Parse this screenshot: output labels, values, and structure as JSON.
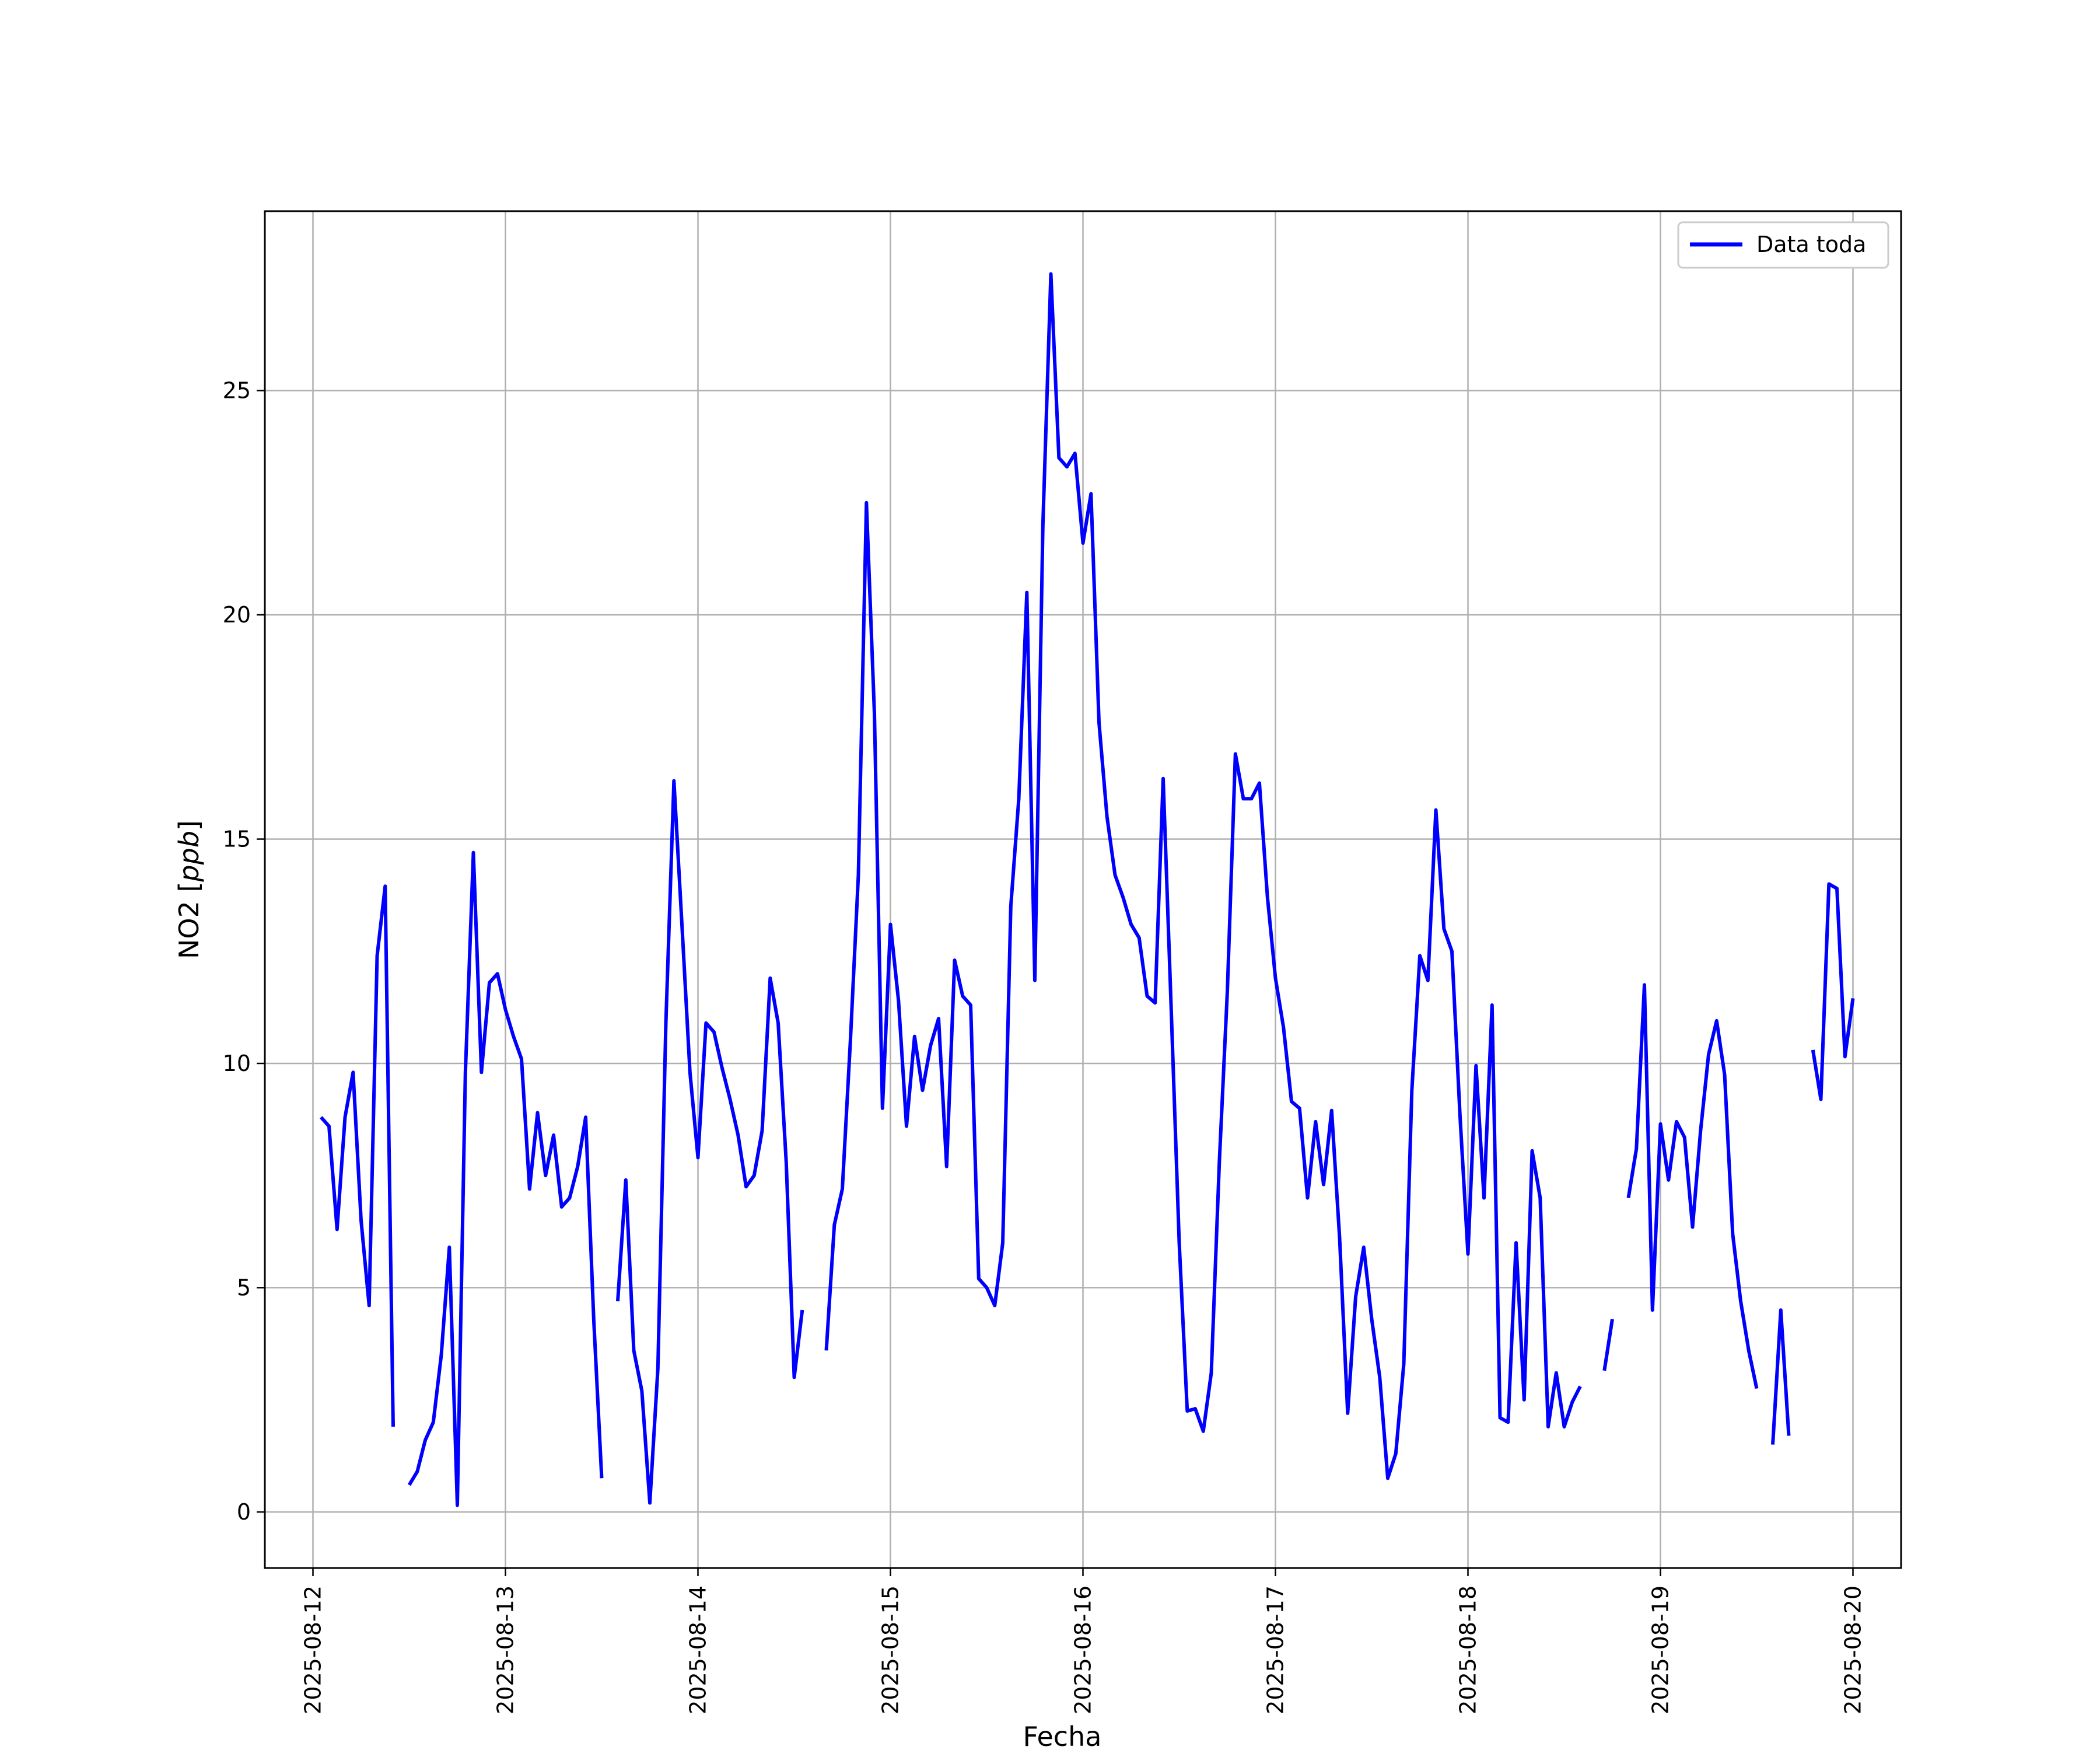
{
  "chart_data": {
    "type": "line",
    "title": "",
    "xlabel": "Fecha",
    "ylabel": "NO2 [ppb]",
    "ylabel_main": "NO2 [",
    "ylabel_unit": "ppb",
    "ylabel_close": "]",
    "xlim": [
      "2025-08-11T18:00",
      "2025-08-20T06:00"
    ],
    "ylim": [
      -1.25,
      29
    ],
    "x_ticks": [
      "2025-08-12",
      "2025-08-13",
      "2025-08-14",
      "2025-08-15",
      "2025-08-16",
      "2025-08-17",
      "2025-08-18",
      "2025-08-19",
      "2025-08-20"
    ],
    "y_ticks": [
      0,
      5,
      10,
      15,
      20,
      25
    ],
    "y_tick_labels": [
      "0",
      "5",
      "10",
      "15",
      "20",
      "25"
    ],
    "grid": true,
    "legend": {
      "position": "top-right",
      "entries": [
        "Data toda"
      ]
    },
    "series": [
      {
        "name": "Data toda",
        "color": "#0000ff",
        "points": [
          [
            "2025-08-12T01:00",
            8.8
          ],
          [
            "2025-08-12T02:00",
            8.6
          ],
          [
            "2025-08-12T03:00",
            6.3
          ],
          [
            "2025-08-12T04:00",
            8.8
          ],
          [
            "2025-08-12T05:00",
            9.8
          ],
          [
            "2025-08-12T06:00",
            6.5
          ],
          [
            "2025-08-12T07:00",
            4.6
          ],
          [
            "2025-08-12T08:00",
            12.4
          ],
          [
            "2025-08-12T09:00",
            13.95
          ],
          [
            "2025-08-12T10:00",
            1.9
          ],
          null,
          [
            "2025-08-12T12:00",
            0.6
          ],
          [
            "2025-08-12T13:00",
            0.9
          ],
          [
            "2025-08-12T14:00",
            1.6
          ],
          [
            "2025-08-12T15:00",
            2.0
          ],
          [
            "2025-08-12T16:00",
            3.5
          ],
          [
            "2025-08-12T17:00",
            5.9
          ],
          [
            "2025-08-12T18:00",
            0.15
          ],
          [
            "2025-08-12T19:00",
            9.8
          ],
          [
            "2025-08-12T20:00",
            14.7
          ],
          [
            "2025-08-12T21:00",
            9.8
          ],
          [
            "2025-08-12T22:00",
            11.8
          ],
          [
            "2025-08-12T23:00",
            12.0
          ],
          [
            "2025-08-13T00:00",
            11.2
          ],
          [
            "2025-08-13T01:00",
            10.6
          ],
          [
            "2025-08-13T02:00",
            10.1
          ],
          [
            "2025-08-13T03:00",
            7.2
          ],
          [
            "2025-08-13T04:00",
            8.9
          ],
          [
            "2025-08-13T05:00",
            7.5
          ],
          [
            "2025-08-13T06:00",
            8.4
          ],
          [
            "2025-08-13T07:00",
            6.8
          ],
          [
            "2025-08-13T08:00",
            7.0
          ],
          [
            "2025-08-13T09:00",
            7.7
          ],
          [
            "2025-08-13T10:00",
            8.8
          ],
          [
            "2025-08-13T11:00",
            4.3
          ],
          [
            "2025-08-13T12:00",
            0.75
          ],
          null,
          [
            "2025-08-13T14:00",
            4.7
          ],
          [
            "2025-08-13T15:00",
            7.4
          ],
          [
            "2025-08-13T16:00",
            3.6
          ],
          [
            "2025-08-13T17:00",
            2.7
          ],
          [
            "2025-08-13T18:00",
            0.2
          ],
          [
            "2025-08-13T19:00",
            3.2
          ],
          [
            "2025-08-13T20:00",
            10.9
          ],
          [
            "2025-08-13T21:00",
            16.3
          ],
          [
            "2025-08-13T22:00",
            13.1
          ],
          [
            "2025-08-13T23:00",
            9.8
          ],
          [
            "2025-08-14T00:00",
            7.9
          ],
          [
            "2025-08-14T01:00",
            10.9
          ],
          [
            "2025-08-14T02:00",
            10.7
          ],
          [
            "2025-08-14T03:00",
            9.9
          ],
          [
            "2025-08-14T04:00",
            9.2
          ],
          [
            "2025-08-14T05:00",
            8.4
          ],
          [
            "2025-08-14T06:00",
            7.25
          ],
          [
            "2025-08-14T07:00",
            7.5
          ],
          [
            "2025-08-14T08:00",
            8.5
          ],
          [
            "2025-08-14T09:00",
            11.9
          ],
          [
            "2025-08-14T10:00",
            10.9
          ],
          [
            "2025-08-14T11:00",
            7.8
          ],
          [
            "2025-08-14T12:00",
            3.0
          ],
          [
            "2025-08-14T13:00",
            4.5
          ],
          null,
          [
            "2025-08-14T16:00",
            3.6
          ],
          [
            "2025-08-14T17:00",
            6.4
          ],
          [
            "2025-08-14T18:00",
            7.2
          ],
          [
            "2025-08-14T19:00",
            10.5
          ],
          [
            "2025-08-14T20:00",
            14.2
          ],
          [
            "2025-08-14T21:00",
            22.5
          ],
          [
            "2025-08-14T22:00",
            17.8
          ],
          [
            "2025-08-14T23:00",
            9.0
          ],
          [
            "2025-08-15T00:00",
            13.1
          ],
          [
            "2025-08-15T01:00",
            11.4
          ],
          [
            "2025-08-15T02:00",
            8.6
          ],
          [
            "2025-08-15T03:00",
            10.6
          ],
          [
            "2025-08-15T04:00",
            9.4
          ],
          [
            "2025-08-15T05:00",
            10.4
          ],
          [
            "2025-08-15T06:00",
            11.0
          ],
          [
            "2025-08-15T07:00",
            7.7
          ],
          [
            "2025-08-15T08:00",
            12.3
          ],
          [
            "2025-08-15T09:00",
            11.5
          ],
          [
            "2025-08-15T10:00",
            11.3
          ],
          [
            "2025-08-15T11:00",
            5.2
          ],
          [
            "2025-08-15T12:00",
            5.0
          ],
          [
            "2025-08-15T13:00",
            4.6
          ],
          [
            "2025-08-15T14:00",
            6.0
          ],
          [
            "2025-08-15T15:00",
            13.5
          ],
          [
            "2025-08-15T16:00",
            15.9
          ],
          [
            "2025-08-15T17:00",
            20.5
          ],
          [
            "2025-08-15T18:00",
            11.85
          ],
          [
            "2025-08-15T19:00",
            22.0
          ],
          [
            "2025-08-15T20:00",
            27.6
          ],
          [
            "2025-08-15T21:00",
            23.5
          ],
          [
            "2025-08-15T22:00",
            23.3
          ],
          [
            "2025-08-15T23:00",
            23.6
          ],
          [
            "2025-08-16T00:00",
            21.6
          ],
          [
            "2025-08-16T01:00",
            22.7
          ],
          [
            "2025-08-16T02:00",
            17.6
          ],
          [
            "2025-08-16T03:00",
            15.5
          ],
          [
            "2025-08-16T04:00",
            14.2
          ],
          [
            "2025-08-16T05:00",
            13.7
          ],
          [
            "2025-08-16T06:00",
            13.1
          ],
          [
            "2025-08-16T07:00",
            12.8
          ],
          [
            "2025-08-16T08:00",
            11.5
          ],
          [
            "2025-08-16T09:00",
            11.35
          ],
          [
            "2025-08-16T10:00",
            16.35
          ],
          [
            "2025-08-16T11:00",
            11.2
          ],
          [
            "2025-08-16T12:00",
            6.0
          ],
          [
            "2025-08-16T13:00",
            2.25
          ],
          [
            "2025-08-16T14:00",
            2.3
          ],
          [
            "2025-08-16T15:00",
            1.8
          ],
          [
            "2025-08-16T16:00",
            3.1
          ],
          [
            "2025-08-16T17:00",
            7.8
          ],
          [
            "2025-08-16T18:00",
            11.6
          ],
          [
            "2025-08-16T19:00",
            16.9
          ],
          [
            "2025-08-16T20:00",
            15.9
          ],
          [
            "2025-08-16T21:00",
            15.9
          ],
          [
            "2025-08-16T22:00",
            16.25
          ],
          [
            "2025-08-16T23:00",
            13.7
          ],
          [
            "2025-08-17T00:00",
            11.9
          ],
          [
            "2025-08-17T01:00",
            10.8
          ],
          [
            "2025-08-17T02:00",
            9.15
          ],
          [
            "2025-08-17T03:00",
            9.0
          ],
          [
            "2025-08-17T04:00",
            7.0
          ],
          [
            "2025-08-17T05:00",
            8.7
          ],
          [
            "2025-08-17T06:00",
            7.3
          ],
          [
            "2025-08-17T07:00",
            8.95
          ],
          [
            "2025-08-17T08:00",
            6.1
          ],
          [
            "2025-08-17T09:00",
            2.2
          ],
          [
            "2025-08-17T10:00",
            4.8
          ],
          [
            "2025-08-17T11:00",
            5.9
          ],
          [
            "2025-08-17T12:00",
            4.3
          ],
          [
            "2025-08-17T13:00",
            3.0
          ],
          [
            "2025-08-17T14:00",
            0.75
          ],
          [
            "2025-08-17T15:00",
            1.3
          ],
          [
            "2025-08-17T16:00",
            3.3
          ],
          [
            "2025-08-17T17:00",
            9.4
          ],
          [
            "2025-08-17T18:00",
            12.4
          ],
          [
            "2025-08-17T19:00",
            11.85
          ],
          [
            "2025-08-17T20:00",
            15.65
          ],
          [
            "2025-08-17T21:00",
            13.0
          ],
          [
            "2025-08-17T22:00",
            12.5
          ],
          [
            "2025-08-17T23:00",
            8.85
          ],
          [
            "2025-08-18T00:00",
            5.75
          ],
          [
            "2025-08-18T01:00",
            9.95
          ],
          [
            "2025-08-18T02:00",
            7.0
          ],
          [
            "2025-08-18T03:00",
            11.3
          ],
          [
            "2025-08-18T04:00",
            2.1
          ],
          [
            "2025-08-18T05:00",
            2.0
          ],
          [
            "2025-08-18T06:00",
            6.0
          ],
          [
            "2025-08-18T07:00",
            2.5
          ],
          [
            "2025-08-18T08:00",
            8.05
          ],
          [
            "2025-08-18T09:00",
            7.0
          ],
          [
            "2025-08-18T10:00",
            1.9
          ],
          [
            "2025-08-18T11:00",
            3.1
          ],
          [
            "2025-08-18T12:00",
            1.9
          ],
          [
            "2025-08-18T13:00",
            2.45
          ],
          [
            "2025-08-18T14:00",
            2.8
          ],
          null,
          [
            "2025-08-18T17:00",
            3.15
          ],
          [
            "2025-08-18T18:00",
            4.3
          ],
          null,
          [
            "2025-08-18T20:00",
            7.0
          ],
          [
            "2025-08-18T21:00",
            8.1
          ],
          [
            "2025-08-18T22:00",
            11.75
          ],
          [
            "2025-08-18T23:00",
            4.5
          ],
          [
            "2025-08-19T00:00",
            8.65
          ],
          [
            "2025-08-19T01:00",
            7.4
          ],
          [
            "2025-08-19T02:00",
            8.7
          ],
          [
            "2025-08-19T03:00",
            8.35
          ],
          [
            "2025-08-19T04:00",
            6.35
          ],
          [
            "2025-08-19T05:00",
            8.5
          ],
          [
            "2025-08-19T06:00",
            10.2
          ],
          [
            "2025-08-19T07:00",
            10.95
          ],
          [
            "2025-08-19T08:00",
            9.75
          ],
          [
            "2025-08-19T09:00",
            6.2
          ],
          [
            "2025-08-19T10:00",
            4.7
          ],
          [
            "2025-08-19T11:00",
            3.6
          ],
          [
            "2025-08-19T12:00",
            2.75
          ],
          null,
          [
            "2025-08-19T14:00",
            1.5
          ],
          [
            "2025-08-19T15:00",
            4.5
          ],
          [
            "2025-08-19T16:00",
            1.7
          ],
          null,
          [
            "2025-08-19T19:00",
            10.3
          ],
          [
            "2025-08-19T20:00",
            9.2
          ],
          [
            "2025-08-19T21:00",
            14.0
          ],
          [
            "2025-08-19T22:00",
            13.9
          ],
          [
            "2025-08-19T23:00",
            10.15
          ],
          [
            "2025-08-20T00:00",
            11.45
          ]
        ]
      }
    ]
  }
}
